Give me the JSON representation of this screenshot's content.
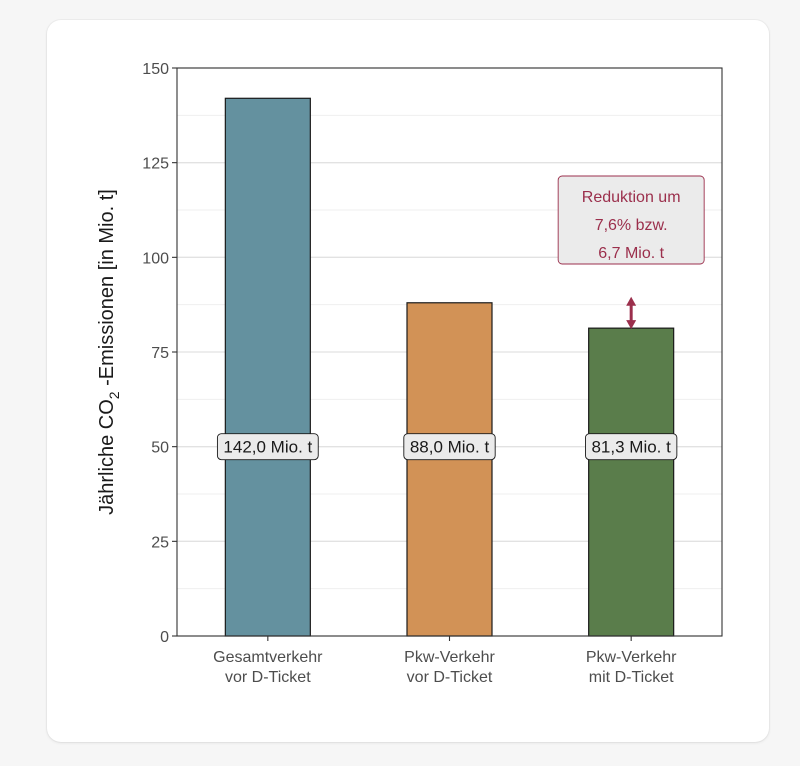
{
  "chart_data": {
    "type": "bar",
    "categories": [
      [
        "Gesamtverkehr",
        "vor D-Ticket"
      ],
      [
        "Pkw-Verkehr",
        "vor D-Ticket"
      ],
      [
        "Pkw-Verkehr",
        "mit D-Ticket"
      ]
    ],
    "values": [
      142.0,
      88.0,
      81.3
    ],
    "value_labels": [
      "142,0 Mio. t",
      "88,0 Mio. t",
      "81,3 Mio. t"
    ],
    "value_label_y": 50,
    "bar_colors": [
      "#64919f",
      "#d29256",
      "#5a7d4b"
    ],
    "ylabel": {
      "prefix": "Jährliche CO",
      "subscript": "2",
      "suffix": " -Emissionen [in Mio. t]"
    },
    "xlabel": "",
    "ylim": [
      0,
      150
    ],
    "yticks": [
      0,
      25,
      50,
      75,
      100,
      125,
      150
    ],
    "grid": true,
    "annotation": {
      "lines": [
        "Reduktion um",
        "7,6% bzw.",
        "6,7 Mio. t"
      ],
      "color": "#9b2f4c",
      "arrow_from": 81.3,
      "arrow_to": 88.0
    }
  }
}
